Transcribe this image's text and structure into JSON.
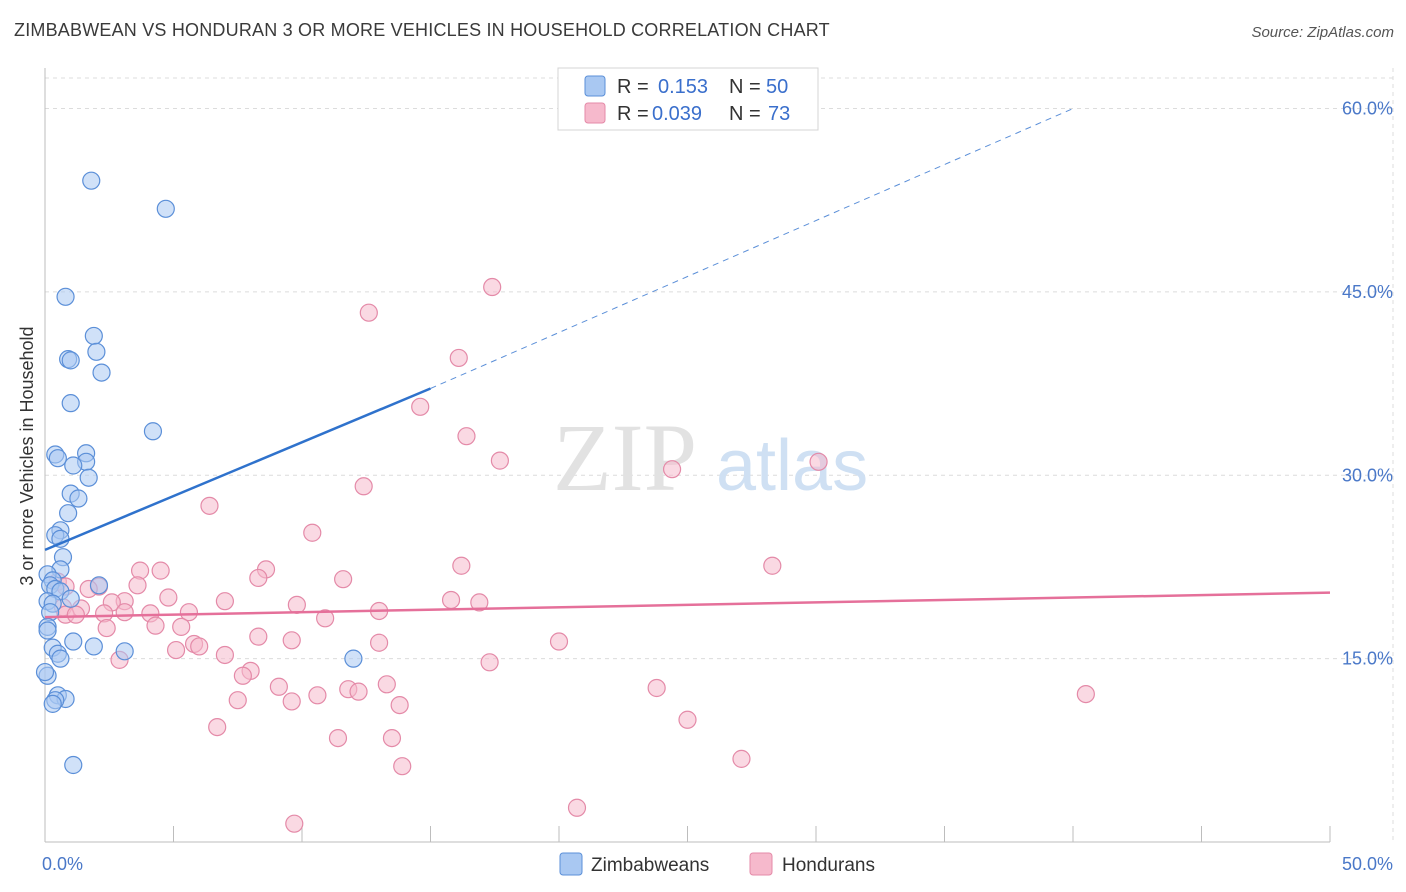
{
  "title": "ZIMBABWEAN VS HONDURAN 3 OR MORE VEHICLES IN HOUSEHOLD CORRELATION CHART",
  "source": "Source: ZipAtlas.com",
  "watermark": {
    "zip": "ZIP",
    "atlas": "atlas"
  },
  "colors": {
    "blue_fill": "#a9c8f2",
    "blue_stroke": "#5b8fd8",
    "blue_line": "#2f72cc",
    "pink_fill": "#f6b9cc",
    "pink_stroke": "#e48aa8",
    "pink_line": "#e5709a",
    "grid": "#dcdcdc",
    "tick_text": "#4a78c8"
  },
  "chart_data": {
    "type": "scatter",
    "title": "ZIMBABWEAN VS HONDURAN 3 OR MORE VEHICLES IN HOUSEHOLD CORRELATION CHART",
    "xlabel": "",
    "ylabel": "3 or more Vehicles in Household",
    "xlim": [
      0,
      50
    ],
    "ylim": [
      0,
      62.5
    ],
    "x_tick_labels": [
      "0.0%",
      "50.0%"
    ],
    "y_ticks": [
      15,
      30,
      45,
      60
    ],
    "y_tick_labels": [
      "15.0%",
      "30.0%",
      "45.0%",
      "60.0%"
    ],
    "legend": [
      {
        "r_label": "R =",
        "r_value": "0.153",
        "n_label": "N =",
        "n_value": "50"
      },
      {
        "r_label": "R =",
        "r_value": "0.039",
        "n_label": "N =",
        "n_value": "73"
      }
    ],
    "bottom_legend": [
      "Zimbabweans",
      "Hondurans"
    ],
    "series": [
      {
        "name": "Zimbabweans",
        "points": [
          [
            1.8,
            54.1
          ],
          [
            4.7,
            51.8
          ],
          [
            0.8,
            44.6
          ],
          [
            1.9,
            41.4
          ],
          [
            2.0,
            40.1
          ],
          [
            0.9,
            39.5
          ],
          [
            1.0,
            39.4
          ],
          [
            2.2,
            38.4
          ],
          [
            1.0,
            35.9
          ],
          [
            4.2,
            33.6
          ],
          [
            0.4,
            31.7
          ],
          [
            0.5,
            31.4
          ],
          [
            1.6,
            31.8
          ],
          [
            1.6,
            31.1
          ],
          [
            1.1,
            30.8
          ],
          [
            1.7,
            29.8
          ],
          [
            1.0,
            28.5
          ],
          [
            1.3,
            28.1
          ],
          [
            0.9,
            26.9
          ],
          [
            0.6,
            25.5
          ],
          [
            0.4,
            25.1
          ],
          [
            0.6,
            24.8
          ],
          [
            0.7,
            23.3
          ],
          [
            0.6,
            22.3
          ],
          [
            0.1,
            21.9
          ],
          [
            0.3,
            21.4
          ],
          [
            0.2,
            21.0
          ],
          [
            2.1,
            21.0
          ],
          [
            0.4,
            20.7
          ],
          [
            0.6,
            20.5
          ],
          [
            1.0,
            19.9
          ],
          [
            0.1,
            19.7
          ],
          [
            0.3,
            19.5
          ],
          [
            0.2,
            18.8
          ],
          [
            0.1,
            17.6
          ],
          [
            0.1,
            17.3
          ],
          [
            1.1,
            16.4
          ],
          [
            1.9,
            16.0
          ],
          [
            0.3,
            15.9
          ],
          [
            3.1,
            15.6
          ],
          [
            0.5,
            15.4
          ],
          [
            0.6,
            15.0
          ],
          [
            12.0,
            15.0
          ],
          [
            0.1,
            13.6
          ],
          [
            0.5,
            12.0
          ],
          [
            0.8,
            11.7
          ],
          [
            0.4,
            11.6
          ],
          [
            0.3,
            11.3
          ],
          [
            1.1,
            6.3
          ],
          [
            0.0,
            13.9
          ]
        ]
      },
      {
        "name": "Hondurans",
        "points": [
          [
            17.4,
            45.4
          ],
          [
            12.6,
            43.3
          ],
          [
            16.1,
            39.6
          ],
          [
            14.6,
            35.6
          ],
          [
            16.4,
            33.2
          ],
          [
            17.7,
            31.2
          ],
          [
            24.4,
            30.5
          ],
          [
            30.1,
            31.1
          ],
          [
            12.4,
            29.1
          ],
          [
            6.4,
            27.5
          ],
          [
            10.4,
            25.3
          ],
          [
            8.6,
            22.3
          ],
          [
            16.2,
            22.6
          ],
          [
            28.3,
            22.6
          ],
          [
            3.7,
            22.2
          ],
          [
            4.5,
            22.2
          ],
          [
            0.5,
            21.3
          ],
          [
            8.3,
            21.6
          ],
          [
            11.6,
            21.5
          ],
          [
            3.6,
            21.0
          ],
          [
            0.8,
            20.9
          ],
          [
            2.1,
            20.9
          ],
          [
            1.7,
            20.7
          ],
          [
            4.8,
            20.0
          ],
          [
            15.8,
            19.8
          ],
          [
            16.9,
            19.6
          ],
          [
            7.0,
            19.7
          ],
          [
            9.8,
            19.4
          ],
          [
            3.1,
            19.7
          ],
          [
            2.6,
            19.6
          ],
          [
            0.7,
            19.2
          ],
          [
            1.4,
            19.1
          ],
          [
            13.0,
            18.9
          ],
          [
            5.6,
            18.8
          ],
          [
            3.1,
            18.8
          ],
          [
            4.1,
            18.7
          ],
          [
            2.3,
            18.7
          ],
          [
            0.8,
            18.6
          ],
          [
            1.2,
            18.6
          ],
          [
            10.9,
            18.3
          ],
          [
            4.3,
            17.7
          ],
          [
            5.3,
            17.6
          ],
          [
            2.4,
            17.5
          ],
          [
            8.3,
            16.8
          ],
          [
            9.6,
            16.5
          ],
          [
            13.0,
            16.3
          ],
          [
            20.0,
            16.4
          ],
          [
            5.8,
            16.2
          ],
          [
            6.0,
            16.0
          ],
          [
            5.1,
            15.7
          ],
          [
            7.0,
            15.3
          ],
          [
            2.9,
            14.9
          ],
          [
            17.3,
            14.7
          ],
          [
            8.0,
            14.0
          ],
          [
            7.7,
            13.6
          ],
          [
            13.3,
            12.9
          ],
          [
            9.1,
            12.7
          ],
          [
            11.8,
            12.5
          ],
          [
            12.2,
            12.3
          ],
          [
            23.8,
            12.6
          ],
          [
            10.6,
            12.0
          ],
          [
            9.6,
            11.5
          ],
          [
            7.5,
            11.6
          ],
          [
            40.5,
            12.1
          ],
          [
            13.8,
            11.2
          ],
          [
            25.0,
            10.0
          ],
          [
            6.7,
            9.4
          ],
          [
            11.4,
            8.5
          ],
          [
            13.5,
            8.5
          ],
          [
            27.1,
            6.8
          ],
          [
            13.9,
            6.2
          ],
          [
            20.7,
            2.8
          ],
          [
            9.7,
            1.5
          ]
        ]
      }
    ],
    "trend_lines": [
      {
        "series": "Zimbabweans",
        "solid": [
          [
            0,
            23.9
          ],
          [
            15,
            37.1
          ]
        ],
        "dashed": [
          [
            15,
            37.1
          ],
          [
            40,
            60.0
          ]
        ]
      },
      {
        "series": "Hondurans",
        "solid": [
          [
            0,
            18.4
          ],
          [
            50,
            20.4
          ]
        ]
      }
    ]
  }
}
